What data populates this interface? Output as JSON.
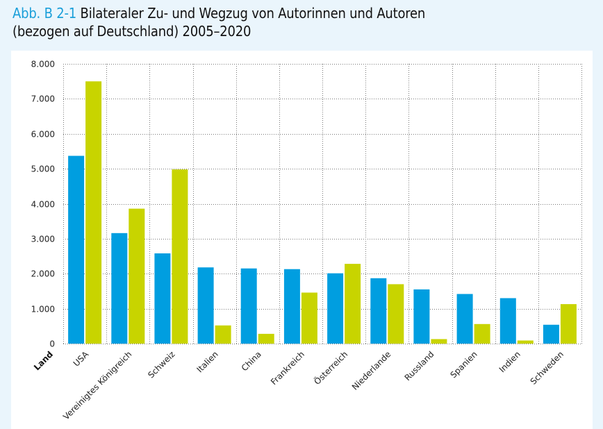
{
  "title": {
    "prefix": "Abb. B 2-1",
    "line1": " Bilateraler Zu- und Wegzug von Autorinnen und Autoren",
    "line2": "(bezogen auf Deutschland) 2005–2020"
  },
  "colors": {
    "accent": "#1a9fd9",
    "background": "#eaf5fc",
    "panel": "#ffffff",
    "series_blue": "#009ee0",
    "series_green": "#c8d400"
  },
  "chart_data": {
    "type": "bar",
    "title": "Abb. B 2-1 Bilateraler Zu- und Wegzug von Autorinnen und Autoren (bezogen auf Deutschland) 2005–2020",
    "xlabel": "Land",
    "ylabel": "",
    "ylim": [
      0,
      8000
    ],
    "yticks": [
      0,
      1000,
      2000,
      3000,
      4000,
      5000,
      6000,
      7000,
      8000
    ],
    "ytick_labels": [
      "0",
      "1.000",
      "2.000",
      "3.000",
      "4.000",
      "5.000",
      "6.000",
      "7.000",
      "8.000"
    ],
    "grid": true,
    "legend": "none",
    "categories": [
      "USA",
      "Vereinigtes Königreich",
      "Schweiz",
      "Italien",
      "China",
      "Frankreich",
      "Österreich",
      "Niederlande",
      "Russland",
      "Spanien",
      "Indien",
      "Schweden"
    ],
    "series": [
      {
        "name": "",
        "color": "#009ee0",
        "values": [
          5370,
          3160,
          2580,
          2180,
          2150,
          2130,
          2010,
          1870,
          1550,
          1420,
          1300,
          540
        ]
      },
      {
        "name": "",
        "color": "#c8d400",
        "values": [
          7500,
          3860,
          4980,
          520,
          280,
          1460,
          2280,
          1700,
          130,
          560,
          90,
          1130
        ]
      }
    ]
  }
}
